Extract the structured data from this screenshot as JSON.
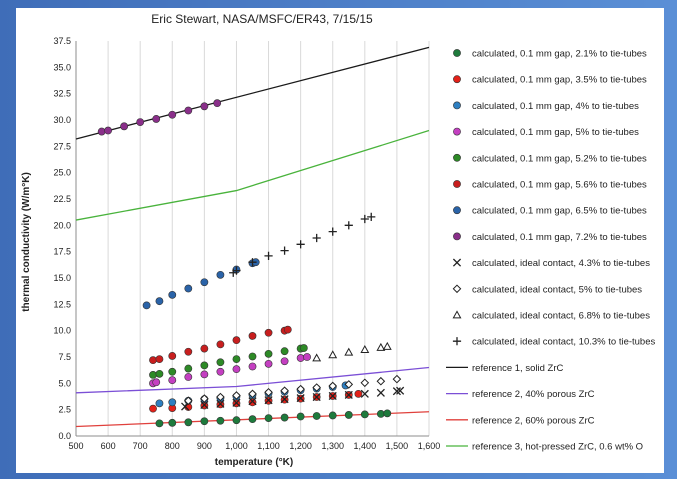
{
  "chart_data": {
    "type": "scatter",
    "title": "Eric Stewart, NASA/MSFC/ER43, 7/15/15",
    "xlabel": "temperature (°K)",
    "ylabel": "thermal conductivity (W/m°K)",
    "xlim": [
      500,
      1600
    ],
    "ylim": [
      0,
      37.5
    ],
    "xticks": [
      "500",
      "600",
      "700",
      "800",
      "900",
      "1,000",
      "1,100",
      "1,200",
      "1,300",
      "1,400",
      "1,500",
      "1,600"
    ],
    "yticks": [
      "0.0",
      "2.5",
      "5.0",
      "7.5",
      "10.0",
      "12.5",
      "15.0",
      "17.5",
      "20.0",
      "22.5",
      "25.0",
      "27.5",
      "30.0",
      "32.5",
      "35.0",
      "37.5"
    ],
    "grid": "vertical",
    "legend_position": "right",
    "series": [
      {
        "name": "calculated, 0.1 mm gap, 2.1% to tie-tubes",
        "marker": "circle",
        "color": "#1e7a3c",
        "x": [
          760,
          800,
          850,
          900,
          950,
          1000,
          1050,
          1100,
          1150,
          1200,
          1250,
          1300,
          1350,
          1400,
          1450,
          1470
        ],
        "y": [
          1.2,
          1.25,
          1.3,
          1.4,
          1.45,
          1.5,
          1.6,
          1.7,
          1.75,
          1.85,
          1.9,
          1.95,
          2.0,
          2.05,
          2.1,
          2.15
        ]
      },
      {
        "name": "calculated, 0.1 mm gap, 3.5% to tie-tubes",
        "marker": "circle",
        "color": "#e32119",
        "x": [
          740,
          800,
          850,
          900,
          950,
          1000,
          1050,
          1100,
          1150,
          1200,
          1250,
          1300,
          1350,
          1380
        ],
        "y": [
          2.6,
          2.65,
          2.75,
          2.9,
          3.0,
          3.1,
          3.2,
          3.35,
          3.45,
          3.55,
          3.7,
          3.8,
          3.9,
          4.0
        ]
      },
      {
        "name": "calculated, 0.1 mm gap, 4% to tie-tubes",
        "marker": "circle",
        "color": "#2e7fc1",
        "x": [
          760,
          800,
          850,
          900,
          950,
          1000,
          1050,
          1100,
          1150,
          1200,
          1250,
          1300,
          1340
        ],
        "y": [
          3.1,
          3.2,
          3.35,
          3.5,
          3.6,
          3.75,
          3.9,
          4.05,
          4.2,
          4.35,
          4.5,
          4.65,
          4.8
        ]
      },
      {
        "name": "calculated, 0.1 mm gap, 5% to tie-tubes",
        "marker": "circle",
        "color": "#c43fc1",
        "x": [
          740,
          750,
          800,
          850,
          900,
          950,
          1000,
          1050,
          1100,
          1150,
          1200,
          1220
        ],
        "y": [
          5.0,
          5.1,
          5.3,
          5.6,
          5.85,
          6.1,
          6.35,
          6.6,
          6.85,
          7.1,
          7.4,
          7.5
        ]
      },
      {
        "name": "calculated, 0.1 mm gap, 5.2% to tie-tubes",
        "marker": "circle",
        "color": "#2d8a26",
        "x": [
          740,
          760,
          800,
          850,
          900,
          950,
          1000,
          1050,
          1100,
          1150,
          1200,
          1210
        ],
        "y": [
          5.8,
          5.9,
          6.1,
          6.4,
          6.7,
          7.0,
          7.3,
          7.55,
          7.8,
          8.05,
          8.3,
          8.35
        ]
      },
      {
        "name": "calculated, 0.1 mm gap, 5.6% to tie-tubes",
        "marker": "circle",
        "color": "#c81e1e",
        "x": [
          740,
          760,
          800,
          850,
          900,
          950,
          1000,
          1050,
          1100,
          1150,
          1160
        ],
        "y": [
          7.2,
          7.3,
          7.6,
          8.0,
          8.3,
          8.7,
          9.1,
          9.5,
          9.8,
          10.0,
          10.1
        ]
      },
      {
        "name": "calculated, 0.1 mm gap, 6.5% to tie-tubes",
        "marker": "circle",
        "color": "#2a63a8",
        "x": [
          720,
          760,
          800,
          850,
          900,
          950,
          1000,
          1050,
          1060
        ],
        "y": [
          12.4,
          12.8,
          13.4,
          14.0,
          14.6,
          15.3,
          15.8,
          16.4,
          16.5
        ]
      },
      {
        "name": "calculated, 0.1 mm gap, 7.2% to tie-tubes",
        "marker": "circle",
        "color": "#8a2f8a",
        "x": [
          580,
          600,
          650,
          700,
          750,
          800,
          850,
          900,
          940
        ],
        "y": [
          28.9,
          29.0,
          29.4,
          29.8,
          30.1,
          30.5,
          30.9,
          31.3,
          31.6
        ]
      },
      {
        "name": "calculated, ideal contact, 4.3% to tie-tubes",
        "marker": "x",
        "color": "#222222",
        "x": [
          840,
          900,
          950,
          1000,
          1050,
          1100,
          1150,
          1200,
          1250,
          1300,
          1350,
          1400,
          1450,
          1500,
          1510
        ],
        "y": [
          2.8,
          2.95,
          3.05,
          3.15,
          3.3,
          3.4,
          3.5,
          3.6,
          3.7,
          3.8,
          3.9,
          4.0,
          4.1,
          4.25,
          4.3
        ]
      },
      {
        "name": "calculated, ideal contact, 5% to tie-tubes",
        "marker": "diamond",
        "color": "#222222",
        "x": [
          850,
          900,
          950,
          1000,
          1050,
          1100,
          1150,
          1200,
          1250,
          1300,
          1350,
          1400,
          1450,
          1500
        ],
        "y": [
          3.35,
          3.55,
          3.7,
          3.85,
          4.0,
          4.15,
          4.3,
          4.45,
          4.6,
          4.75,
          4.9,
          5.05,
          5.2,
          5.4
        ]
      },
      {
        "name": "calculated, ideal contact, 6.8% to tie-tubes",
        "marker": "triangle",
        "color": "#222222",
        "x": [
          1250,
          1300,
          1350,
          1400,
          1450,
          1470
        ],
        "y": [
          7.4,
          7.7,
          7.95,
          8.2,
          8.4,
          8.5
        ]
      },
      {
        "name": "calculated, ideal contact, 10.3% to tie-tubes",
        "marker": "plus",
        "color": "#222222",
        "x": [
          990,
          1000,
          1050,
          1100,
          1150,
          1200,
          1250,
          1300,
          1350,
          1400,
          1420
        ],
        "y": [
          15.5,
          15.7,
          16.5,
          17.1,
          17.6,
          18.2,
          18.8,
          19.4,
          20.0,
          20.6,
          20.8
        ]
      }
    ],
    "reference_lines": [
      {
        "name": "reference 1, solid ZrC",
        "color": "#1a1a1a",
        "x": [
          500,
          1600
        ],
        "y": [
          28.2,
          36.9
        ]
      },
      {
        "name": "reference 2, 40% porous ZrC",
        "color": "#7b4fd6",
        "x": [
          500,
          1000,
          1600
        ],
        "y": [
          4.1,
          4.7,
          6.5
        ]
      },
      {
        "name": "reference 2, 60% porous ZrC",
        "color": "#e0403c",
        "x": [
          500,
          1600
        ],
        "y": [
          0.9,
          2.3
        ]
      },
      {
        "name": "reference 3, hot-pressed ZrC, 0.6 wt% O",
        "color": "#49b33c",
        "x": [
          500,
          1000,
          1600
        ],
        "y": [
          20.5,
          23.3,
          29.0
        ]
      }
    ]
  }
}
